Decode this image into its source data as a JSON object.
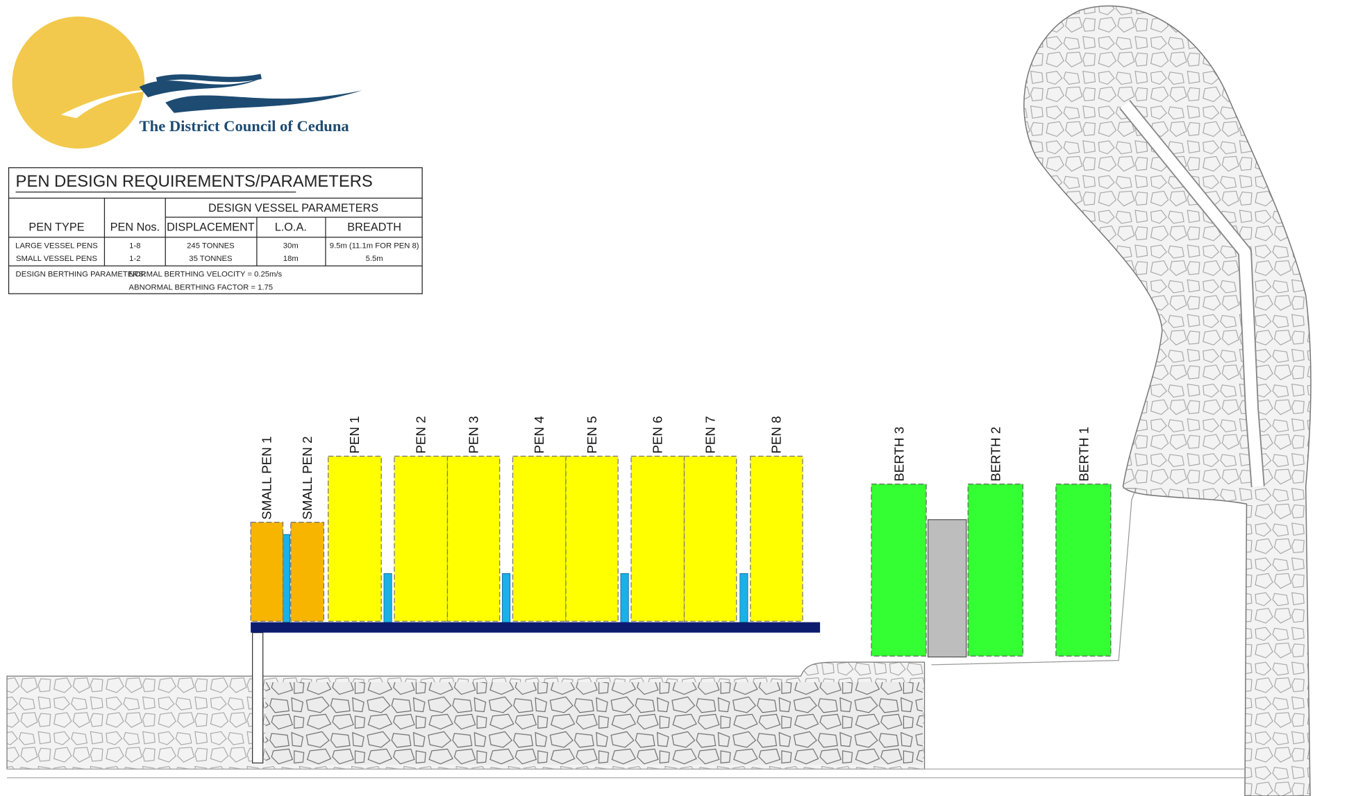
{
  "logo": {
    "text": "The District Council of Ceduna"
  },
  "table": {
    "title": "PEN DESIGN REQUIREMENTS/PARAMETERS",
    "group_header": "DESIGN VESSEL PARAMETERS",
    "headers": [
      "PEN TYPE",
      "PEN Nos.",
      "DISPLACEMENT",
      "L.O.A.",
      "BREADTH"
    ],
    "rows": [
      [
        "LARGE VESSEL PENS",
        "1-8",
        "245 TONNES",
        "30m",
        "9.5m (11.1m FOR PEN 8)"
      ],
      [
        "SMALL VESSEL PENS",
        "1-2",
        "35 TONNES",
        "18m",
        "5.5m"
      ]
    ],
    "parameters": {
      "label": "DESIGN BERTHING PARAMETERS:",
      "lines": [
        "NORMAL BERTHING VELOCITY = 0.25m/s",
        "ABNORMAL BERTHING FACTOR = 1.75"
      ]
    }
  },
  "pens": [
    {
      "label": "SMALL PEN 1"
    },
    {
      "label": "SMALL PEN 2"
    },
    {
      "label": "PEN 1"
    },
    {
      "label": "PEN 2"
    },
    {
      "label": "PEN 3"
    },
    {
      "label": "PEN 4"
    },
    {
      "label": "PEN 5"
    },
    {
      "label": "PEN 6"
    },
    {
      "label": "PEN 7"
    },
    {
      "label": "PEN 8"
    }
  ],
  "berths": [
    {
      "label": "BERTH 3"
    },
    {
      "label": "BERTH 2"
    },
    {
      "label": "BERTH 1"
    }
  ]
}
